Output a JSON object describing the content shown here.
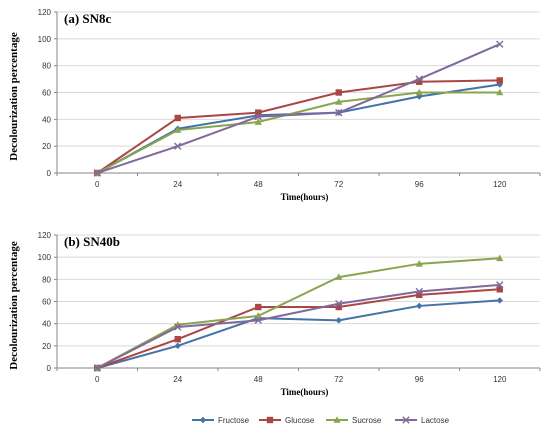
{
  "chart_data": [
    {
      "type": "line",
      "title": "(a) SN8c",
      "xlabel": "Time(hours)",
      "ylabel": "Decolourization percentage",
      "categories": [
        "0",
        "24",
        "48",
        "72",
        "96",
        "120"
      ],
      "ylim": [
        0,
        120
      ],
      "yticks": [
        0,
        20,
        40,
        60,
        80,
        100,
        120
      ],
      "grid": true,
      "series": [
        {
          "name": "Fructose",
          "values": [
            0,
            33,
            43,
            45,
            57,
            66
          ]
        },
        {
          "name": "Glucose",
          "values": [
            0,
            41,
            45,
            60,
            68,
            69
          ]
        },
        {
          "name": "Sucrose",
          "values": [
            0,
            32,
            38,
            53,
            60,
            60
          ]
        },
        {
          "name": "Lactose",
          "values": [
            0,
            20,
            42,
            45,
            70,
            96
          ]
        }
      ]
    },
    {
      "type": "line",
      "title": "(b) SN40b",
      "xlabel": "Time(hours)",
      "ylabel": "Decolourization percentage",
      "categories": [
        "0",
        "24",
        "48",
        "72",
        "96",
        "120"
      ],
      "ylim": [
        0,
        120
      ],
      "yticks": [
        0,
        20,
        40,
        60,
        80,
        100,
        120
      ],
      "grid": true,
      "series": [
        {
          "name": "Fructose",
          "values": [
            0,
            20,
            45,
            43,
            56,
            61
          ]
        },
        {
          "name": "Glucose",
          "values": [
            0,
            26,
            55,
            55,
            66,
            71
          ]
        },
        {
          "name": "Sucrose",
          "values": [
            0,
            39,
            47,
            82,
            94,
            99
          ]
        },
        {
          "name": "Lactose",
          "values": [
            0,
            37,
            43,
            58,
            69,
            75
          ]
        }
      ]
    }
  ],
  "legend": {
    "placement": "bottom",
    "items": [
      {
        "name": "Fructose",
        "color": "#4572A7",
        "marker": "diamond"
      },
      {
        "name": "Glucose",
        "color": "#AA4643",
        "marker": "square"
      },
      {
        "name": "Sucrose",
        "color": "#89A54E",
        "marker": "triangle"
      },
      {
        "name": "Lactose",
        "color": "#80699B",
        "marker": "x"
      }
    ]
  }
}
